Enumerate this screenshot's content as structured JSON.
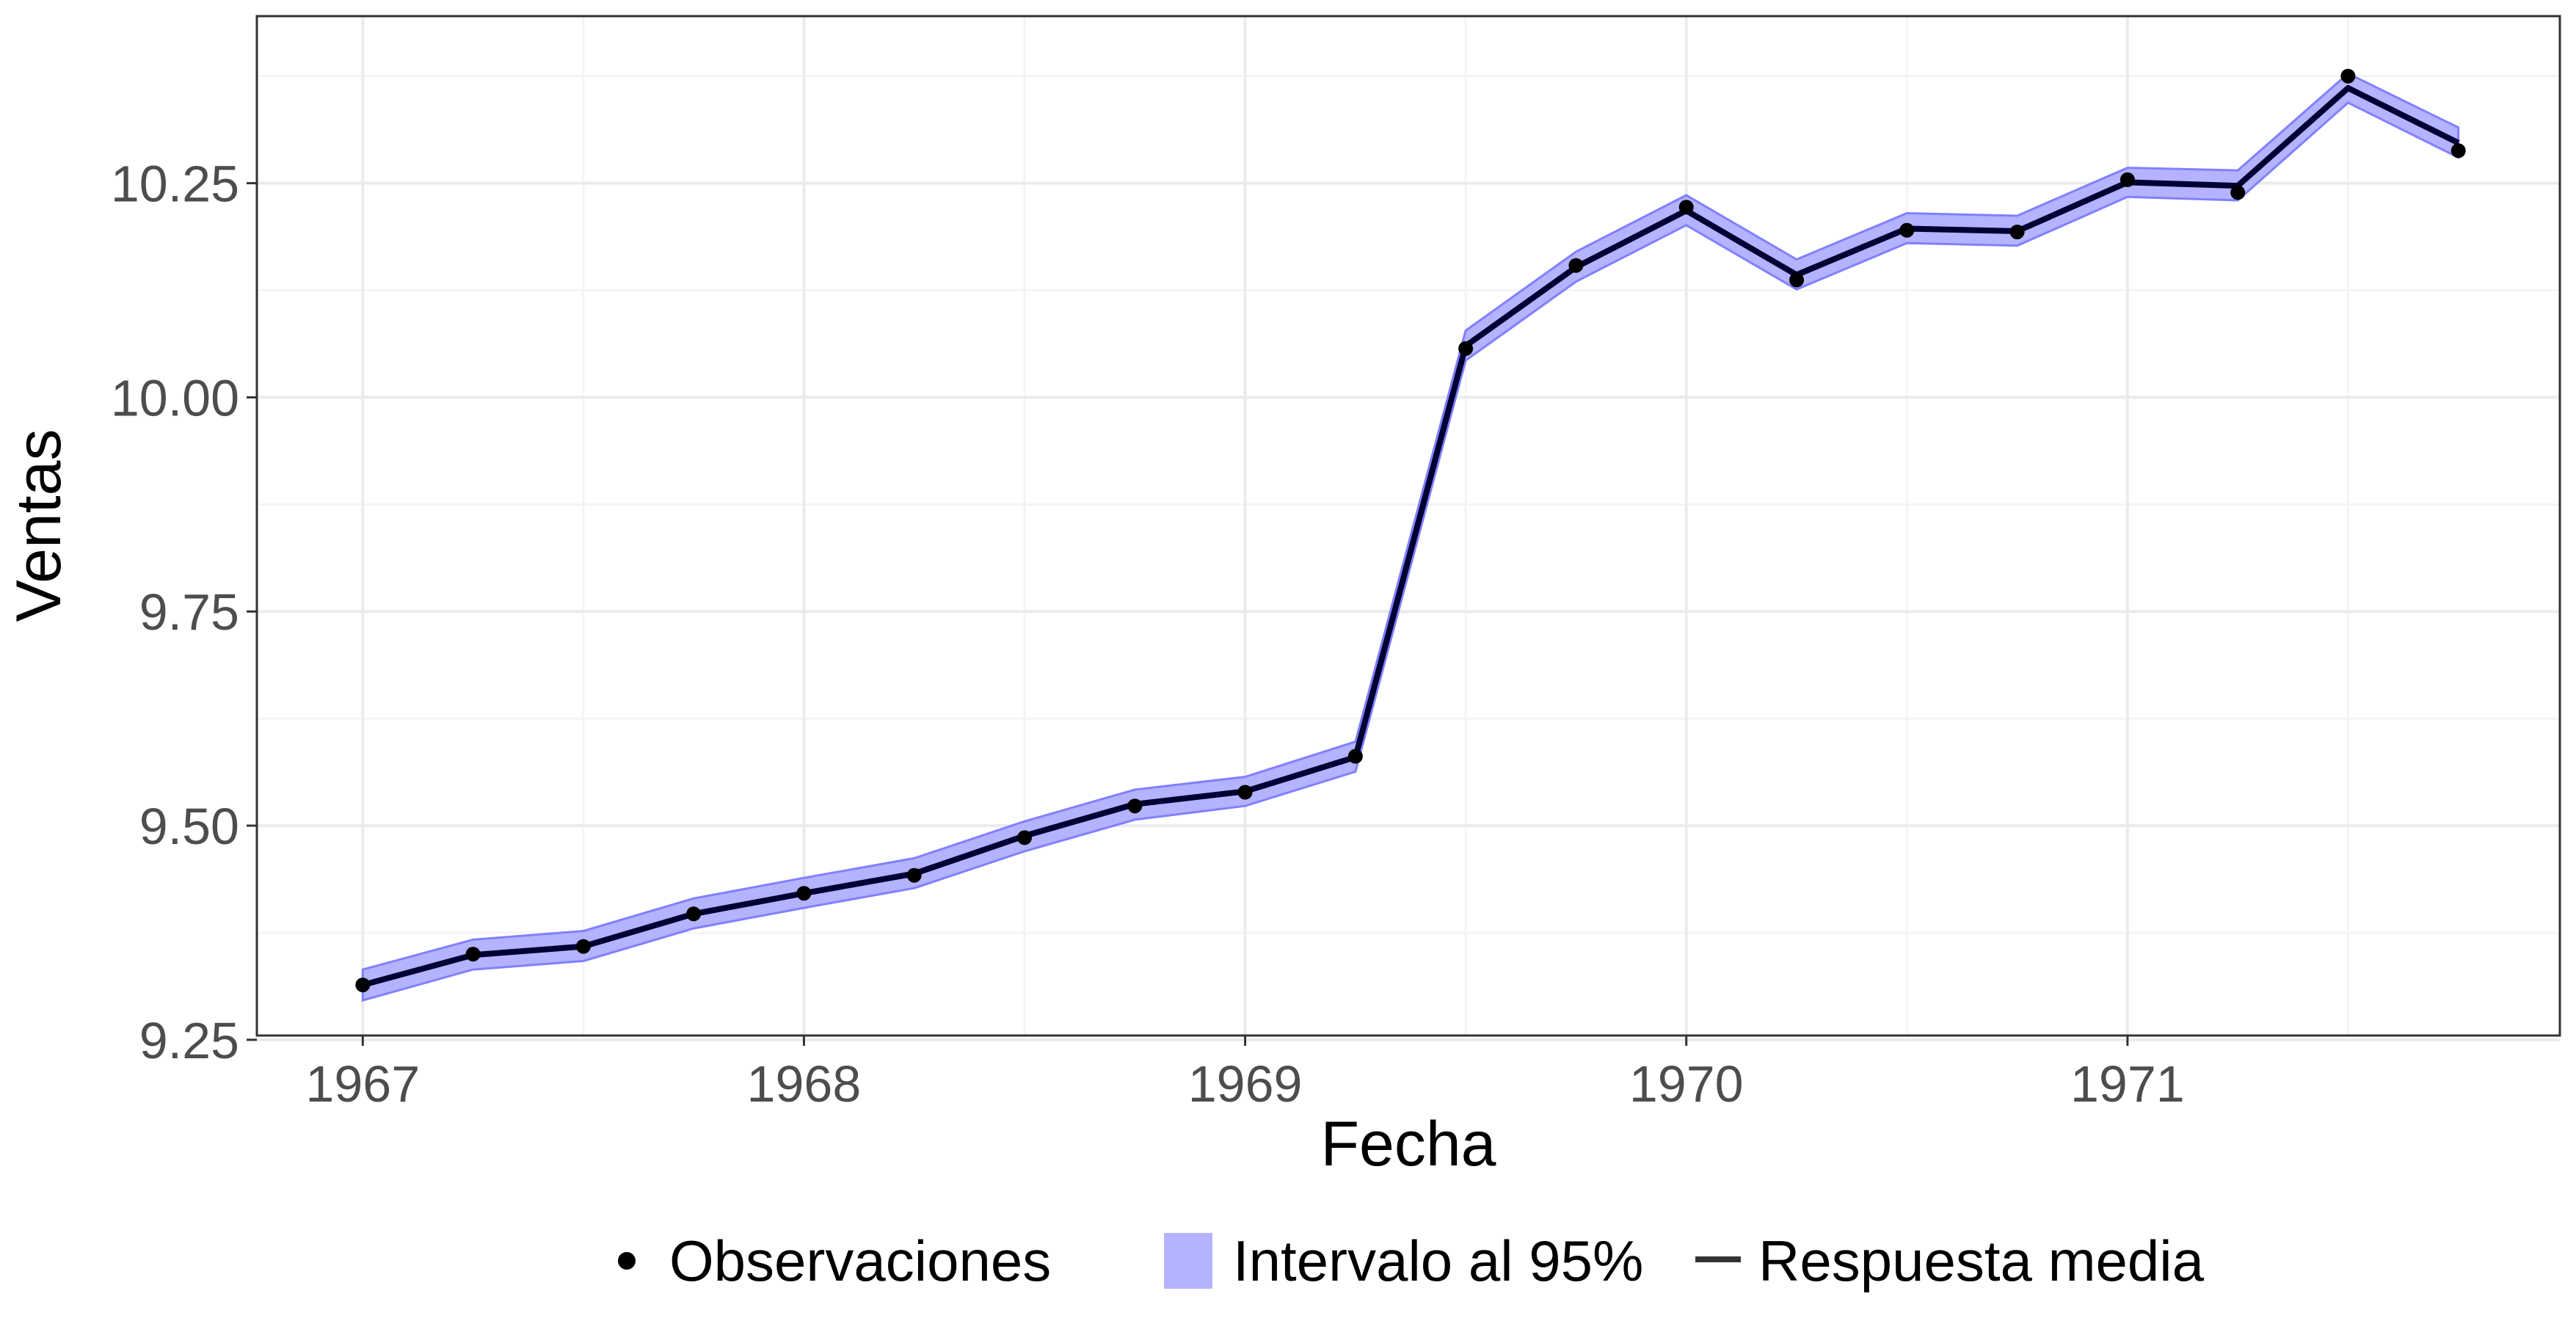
{
  "colors": {
    "band_fill": "#b3b3ff",
    "band_edge": "#8080ff",
    "line": "#000033",
    "points": "#000000",
    "grid_major": "#ebebeb",
    "grid_minor": "#f4f4f4",
    "panel_border": "#333333",
    "tick_text": "#4d4d4d"
  },
  "chart_data": {
    "type": "line",
    "xlabel": "Fecha",
    "ylabel": "Ventas",
    "xlim": [
      1966.76,
      1971.98
    ],
    "ylim": [
      9.255,
      10.445
    ],
    "x_ticks": [
      1967,
      1968,
      1969,
      1970,
      1971
    ],
    "x_tick_labels": [
      "1967",
      "1968",
      "1969",
      "1970",
      "1971"
    ],
    "y_ticks": [
      9.25,
      9.5,
      9.75,
      10.0,
      10.25
    ],
    "y_tick_labels": [
      "9.25",
      "9.50",
      "9.75",
      "10.00",
      "10.25"
    ],
    "grid": true,
    "legend_position": "bottom",
    "legend": [
      {
        "key": "points",
        "label": "Observaciones"
      },
      {
        "key": "band",
        "label": "Intervalo al 95%"
      },
      {
        "key": "line",
        "label": "Respuesta media"
      }
    ],
    "dates": [
      "1967-01",
      "1967-04",
      "1967-07",
      "1967-10",
      "1968-01",
      "1968-04",
      "1968-07",
      "1968-10",
      "1969-01",
      "1969-04",
      "1969-07",
      "1969-10",
      "1970-01",
      "1970-04",
      "1970-07",
      "1970-10",
      "1971-01",
      "1971-04",
      "1971-07",
      "1971-10"
    ],
    "x": [
      1967.0,
      1967.25,
      1967.5,
      1967.75,
      1968.0,
      1968.25,
      1968.5,
      1968.75,
      1969.0,
      1969.25,
      1969.5,
      1969.75,
      1970.0,
      1970.25,
      1970.5,
      1970.75,
      1971.0,
      1971.25,
      1971.5,
      1971.75
    ],
    "series": [
      {
        "name": "Observaciones",
        "kind": "points",
        "values": [
          9.314,
          9.35,
          9.359,
          9.397,
          9.421,
          9.442,
          9.486,
          9.523,
          9.539,
          9.581,
          10.057,
          10.154,
          10.222,
          10.137,
          10.195,
          10.193,
          10.254,
          10.239,
          10.375,
          10.288
        ]
      },
      {
        "name": "Respuesta media",
        "kind": "line",
        "values": [
          9.314,
          9.349,
          9.359,
          9.397,
          9.421,
          9.444,
          9.488,
          9.525,
          9.54,
          9.58,
          10.06,
          10.152,
          10.218,
          10.143,
          10.197,
          10.194,
          10.251,
          10.247,
          10.361,
          10.297
        ]
      },
      {
        "name": "Intervalo al 95%",
        "kind": "band",
        "lower": [
          9.296,
          9.332,
          9.342,
          9.38,
          9.404,
          9.427,
          9.47,
          9.507,
          9.523,
          9.563,
          10.043,
          10.135,
          10.201,
          10.126,
          10.18,
          10.177,
          10.234,
          10.23,
          10.344,
          10.28
        ],
        "upper": [
          9.332,
          9.367,
          9.377,
          9.415,
          9.439,
          9.462,
          9.505,
          9.542,
          9.557,
          9.598,
          10.078,
          10.17,
          10.236,
          10.161,
          10.215,
          10.212,
          10.268,
          10.265,
          10.378,
          10.315
        ]
      }
    ]
  }
}
